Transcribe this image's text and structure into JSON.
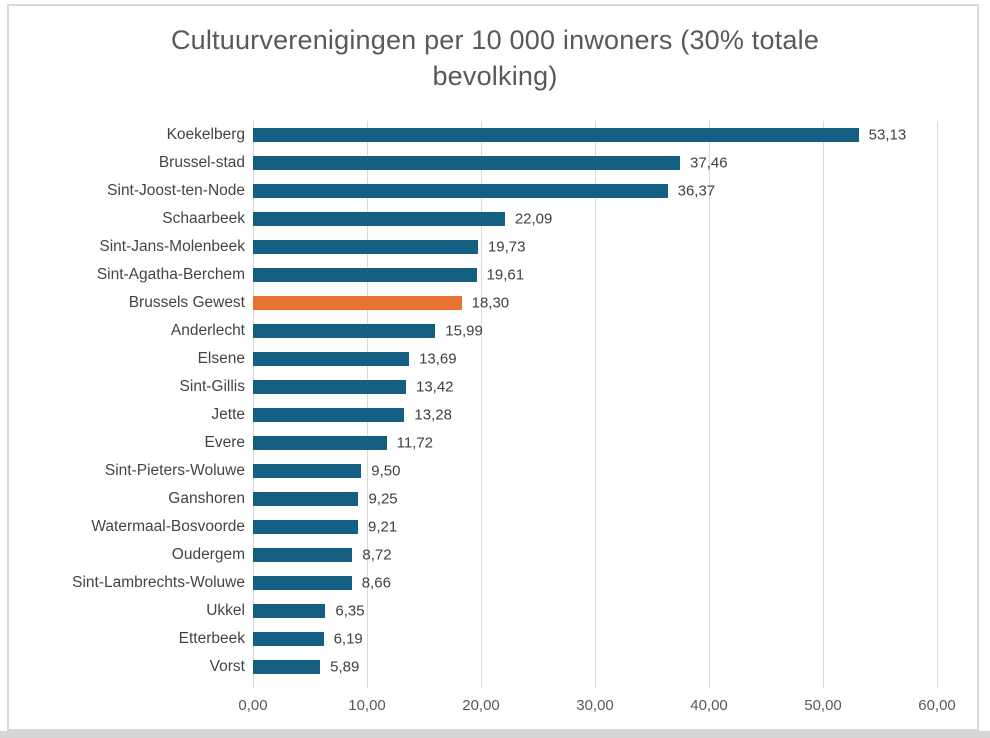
{
  "frame": {
    "border_color": "#D9D9D9",
    "bottom_strip_color": "#D6D6D6",
    "background": "#ffffff"
  },
  "chart_data": {
    "type": "bar",
    "orientation": "horizontal",
    "title": "Cultuurverenigingen per 10 000 inwoners (30% totale bevolking)",
    "categories": [
      "Koekelberg",
      "Brussel-stad",
      "Sint-Joost-ten-Node",
      "Schaarbeek",
      "Sint-Jans-Molenbeek",
      "Sint-Agatha-Berchem",
      "Brussels Gewest",
      "Anderlecht",
      "Elsene",
      "Sint-Gillis",
      "Jette",
      "Evere",
      "Sint-Pieters-Woluwe",
      "Ganshoren",
      "Watermaal-Bosvoorde",
      "Oudergem",
      "Sint-Lambrechts-Woluwe",
      "Ukkel",
      "Etterbeek",
      "Vorst"
    ],
    "values": [
      53.13,
      37.46,
      36.37,
      22.09,
      19.73,
      19.61,
      18.3,
      15.99,
      13.69,
      13.42,
      13.28,
      11.72,
      9.5,
      9.25,
      9.21,
      8.72,
      8.66,
      6.35,
      6.19,
      5.89
    ],
    "value_labels": [
      "53,13",
      "37,46",
      "36,37",
      "22,09",
      "19,73",
      "19,61",
      "18,30",
      "15,99",
      "13,69",
      "13,42",
      "13,28",
      "11,72",
      "9,50",
      "9,25",
      "9,21",
      "8,72",
      "8,66",
      "6,35",
      "6,19",
      "5,89"
    ],
    "highlight_index": 6,
    "xlabel": "",
    "ylabel": "",
    "xlim": [
      0,
      60
    ],
    "x_ticks": [
      "0,00",
      "10,00",
      "20,00",
      "30,00",
      "40,00",
      "50,00",
      "60,00"
    ],
    "x_tick_values": [
      0,
      10,
      20,
      30,
      40,
      50,
      60
    ],
    "grid": true,
    "legend": "none",
    "colors": {
      "bar": "#156082",
      "highlight": "#E97132",
      "gridline": "#D9D9D9",
      "title_text": "#595959",
      "category_text": "#444444",
      "value_text": "#404040",
      "tick_text": "#595959"
    }
  }
}
